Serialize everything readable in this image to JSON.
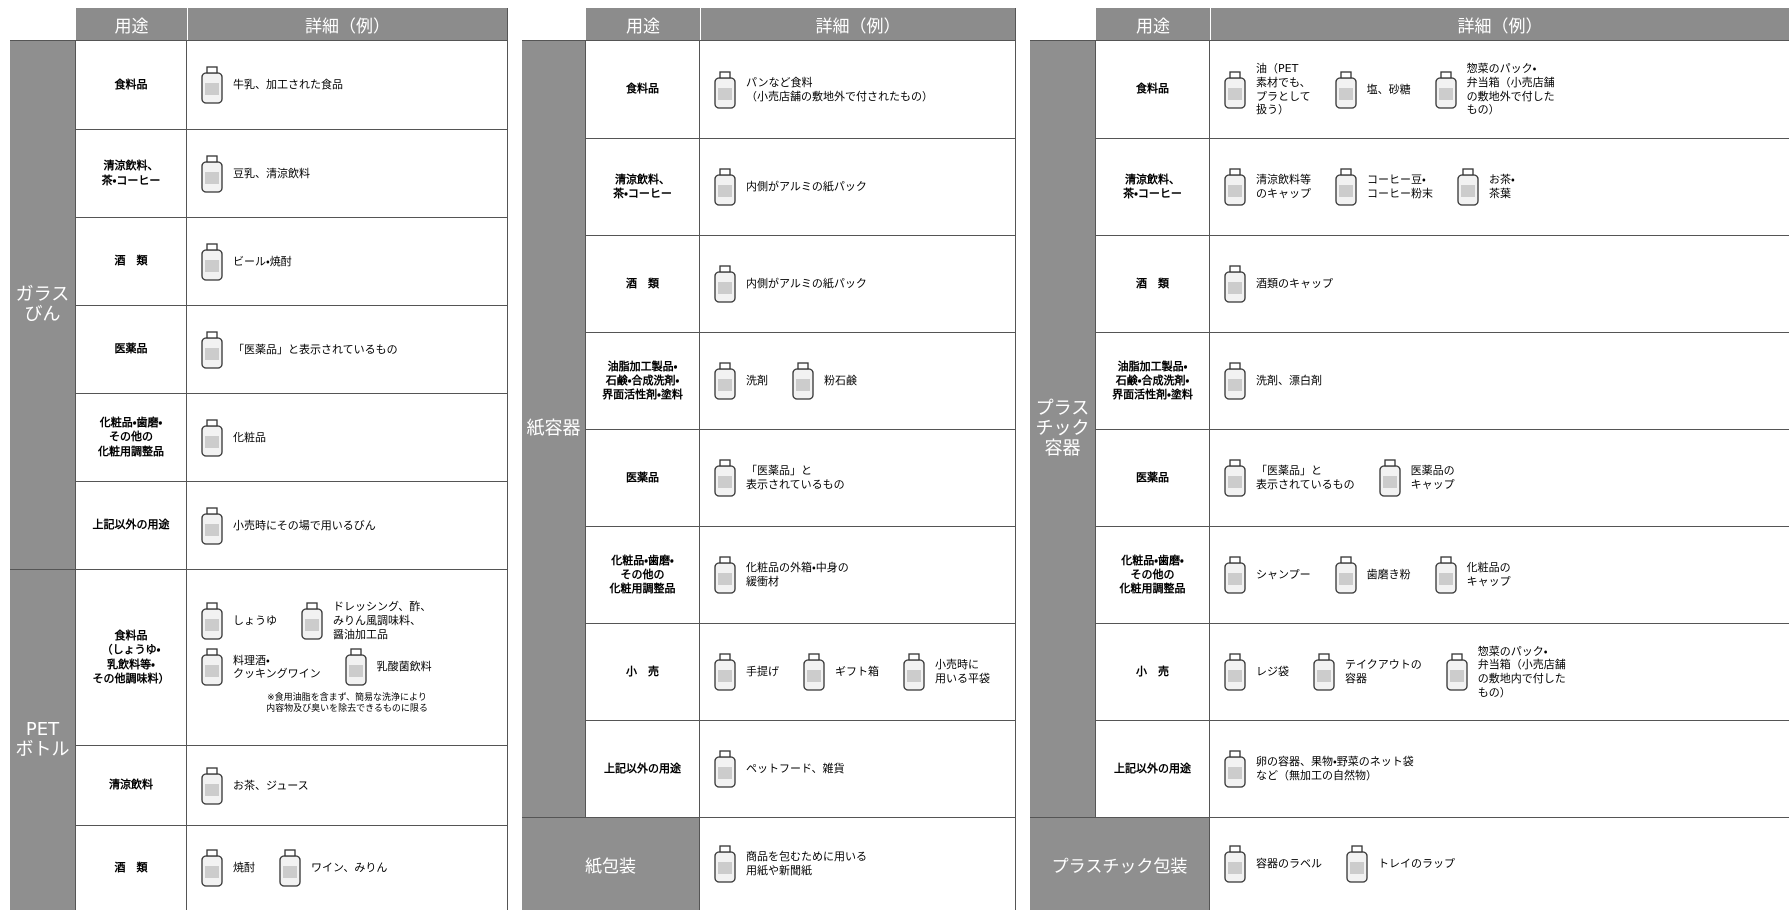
{
  "panels": [
    {
      "header": {
        "use": "用途",
        "detail": "詳細（例）"
      },
      "groups": [
        {
          "name": "ガラス\nびん",
          "rows": [
            {
              "use": "食料品",
              "items": [
                "牛乳、加工された食品"
              ]
            },
            {
              "use": "清涼飲料、\n茶・コーヒー",
              "items": [
                "豆乳、清涼飲料"
              ]
            },
            {
              "use": "酒　類",
              "items": [
                "ビール・焼酎"
              ]
            },
            {
              "use": "医薬品",
              "items": [
                "「医薬品」と表示されているもの"
              ]
            },
            {
              "use": "化粧品・歯磨・\nその他の\n化粧用調整品",
              "items": [
                "化粧品"
              ]
            },
            {
              "use": "上記以外の用途",
              "items": [
                "小売時にその場で用いるびん"
              ]
            }
          ]
        },
        {
          "name": "PET\nボトル",
          "rows": [
            {
              "use": "食料品\n（しょうゆ・\n乳飲料等・\nその他調味料）",
              "items": [
                "しょうゆ",
                "ドレッシング、酢、\nみりん風調味料、\n醤油加工品",
                "料理酒・\nクッキングワイン",
                "乳酸菌飲料"
              ],
              "note": "※食用油脂を含まず、簡易な洗浄により\n内容物及び臭いを除去できるものに限る"
            },
            {
              "use": "清涼飲料",
              "items": [
                "お茶、ジュース"
              ]
            },
            {
              "use": "酒　類",
              "items": [
                "焼酎",
                "ワイン、みりん"
              ]
            }
          ]
        }
      ]
    },
    {
      "header": {
        "use": "用途",
        "detail": "詳細（例）"
      },
      "groups": [
        {
          "name": "紙容器",
          "rows": [
            {
              "use": "食料品",
              "items": [
                "パンなど食料\n（小売店舗の敷地外で付されたもの）"
              ]
            },
            {
              "use": "清涼飲料、\n茶・コーヒー",
              "items": [
                "内側がアルミの紙パック"
              ]
            },
            {
              "use": "酒　類",
              "items": [
                "内側がアルミの紙パック"
              ]
            },
            {
              "use": "油脂加工製品・\n石鹸・合成洗剤・\n界面活性剤・塗料",
              "items": [
                "洗剤",
                "粉石鹸"
              ]
            },
            {
              "use": "医薬品",
              "items": [
                "「医薬品」と\n表示されているもの"
              ]
            },
            {
              "use": "化粧品・歯磨・\nその他の\n化粧用調整品",
              "items": [
                "化粧品の外箱・中身の\n緩衝材"
              ]
            },
            {
              "use": "小　売",
              "items": [
                "手提げ",
                "ギフト箱",
                "小売時に\n用いる平袋"
              ]
            },
            {
              "use": "上記以外の用途",
              "items": [
                "ペットフード、雑貨"
              ]
            }
          ]
        },
        {
          "name": "紙包装",
          "items": [
            "商品を包むために用いる\n用紙や新聞紙"
          ]
        }
      ]
    },
    {
      "header": {
        "use": "用途",
        "detail": "詳細（例）"
      },
      "groups": [
        {
          "name": "プラス\nチック\n容器",
          "rows": [
            {
              "use": "食料品",
              "items": [
                "油（PET\n素材でも、\nプラとして\n扱う）",
                "塩、砂糖",
                "惣菜のパック・\n弁当箱（小売店舗\nの敷地外で付した\nもの）"
              ]
            },
            {
              "use": "清涼飲料、\n茶・コーヒー",
              "items": [
                "清涼飲料等\nのキャップ",
                "コーヒー豆・\nコーヒー粉末",
                "お茶・\n茶葉"
              ]
            },
            {
              "use": "酒　類",
              "items": [
                "酒類のキャップ"
              ]
            },
            {
              "use": "油脂加工製品・\n石鹸・合成洗剤・\n界面活性剤・塗料",
              "items": [
                "洗剤、漂白剤"
              ]
            },
            {
              "use": "医薬品",
              "items": [
                "「医薬品」と\n表示されているもの",
                "医薬品の\nキャップ"
              ]
            },
            {
              "use": "化粧品・歯磨・\nその他の\n化粧用調整品",
              "items": [
                "シャンプー",
                "歯磨き粉",
                "化粧品の\nキャップ"
              ]
            },
            {
              "use": "小　売",
              "items": [
                "レジ袋",
                "テイクアウトの\n容器",
                "惣菜のパック・\n弁当箱（小売店舗\nの敷地内で付した\nもの）"
              ]
            },
            {
              "use": "上記以外の用途",
              "items": [
                "卵の容器、果物・野菜のネット袋\nなど（無加工の自然物）"
              ]
            }
          ]
        },
        {
          "name": "プラスチック包装",
          "items": [
            "容器のラベル",
            "トレイのラップ"
          ]
        }
      ]
    }
  ]
}
